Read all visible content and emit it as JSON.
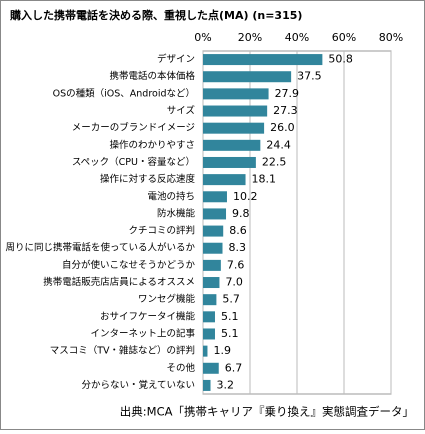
{
  "chart_data": {
    "type": "bar",
    "orientation": "horizontal",
    "title": "購入した携帯電話を決める際、重視した点(MA) (n=315)",
    "categories": [
      "デザイン",
      "携帯電話の本体価格",
      "OSの種類（iOS、Androidなど）",
      "サイズ",
      "メーカーのブランドイメージ",
      "操作のわかりやすさ",
      "スペック（CPU・容量など）",
      "操作に対する反応速度",
      "電池の持ち",
      "防水機能",
      "クチコミの評判",
      "周りに同じ携帯電話を使っている人がいるか",
      "自分が使いこなせそうかどうか",
      "携帯電話販売店店員によるオススメ",
      "ワンセグ機能",
      "おサイフケータイ機能",
      "インターネット上の記事",
      "マスコミ（TV・雑誌など）の評判",
      "その他",
      "分からない・覚えていない"
    ],
    "values": [
      50.8,
      37.5,
      27.9,
      27.3,
      26.0,
      24.4,
      22.5,
      18.1,
      10.2,
      9.8,
      8.6,
      8.3,
      7.6,
      7.0,
      5.7,
      5.1,
      5.1,
      1.9,
      6.7,
      3.2
    ],
    "value_labels": [
      "50.8",
      "37.5",
      "27.9",
      "27.3",
      "26.0",
      "24.4",
      "22.5",
      "18.1",
      "10.2",
      "9.8",
      "8.6",
      "8.3",
      "7.6",
      "7.0",
      "5.7",
      "5.1",
      "5.1",
      "1.9",
      "6.7",
      "3.2"
    ],
    "color": "#31859c",
    "xlim": [
      0,
      80
    ],
    "xticks": [
      {
        "value": 0,
        "label": "0%"
      },
      {
        "value": 20,
        "label": "20%"
      },
      {
        "value": 40,
        "label": "40%"
      },
      {
        "value": 60,
        "label": "60%"
      },
      {
        "value": 80,
        "label": "80%"
      }
    ],
    "grid": true,
    "source": "出典:MCA「携帯キャリア『乗り換え』実態調査データ」"
  }
}
